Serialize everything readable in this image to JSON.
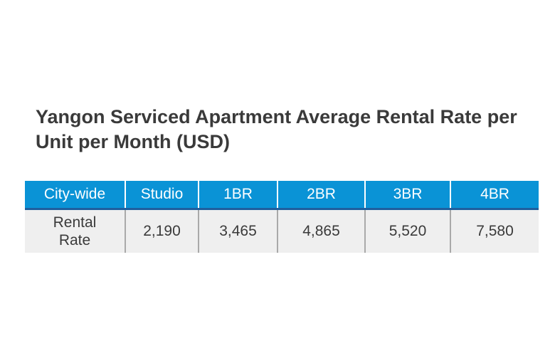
{
  "title": "Yangon Serviced Apartment Average Rental Rate per Unit per Month (USD)",
  "colors": {
    "header_background": "#0a93d6",
    "header_text": "#ffffff",
    "row_background": "#efefef",
    "title_text": "#3a3a3a"
  },
  "table": {
    "headers": [
      "City-wide",
      "Studio",
      "1BR",
      "2BR",
      "3BR",
      "4BR"
    ],
    "rows": [
      {
        "label": "Rental Rate",
        "values": [
          "2,190",
          "3,465",
          "4,865",
          "5,520",
          "7,580"
        ]
      }
    ]
  }
}
